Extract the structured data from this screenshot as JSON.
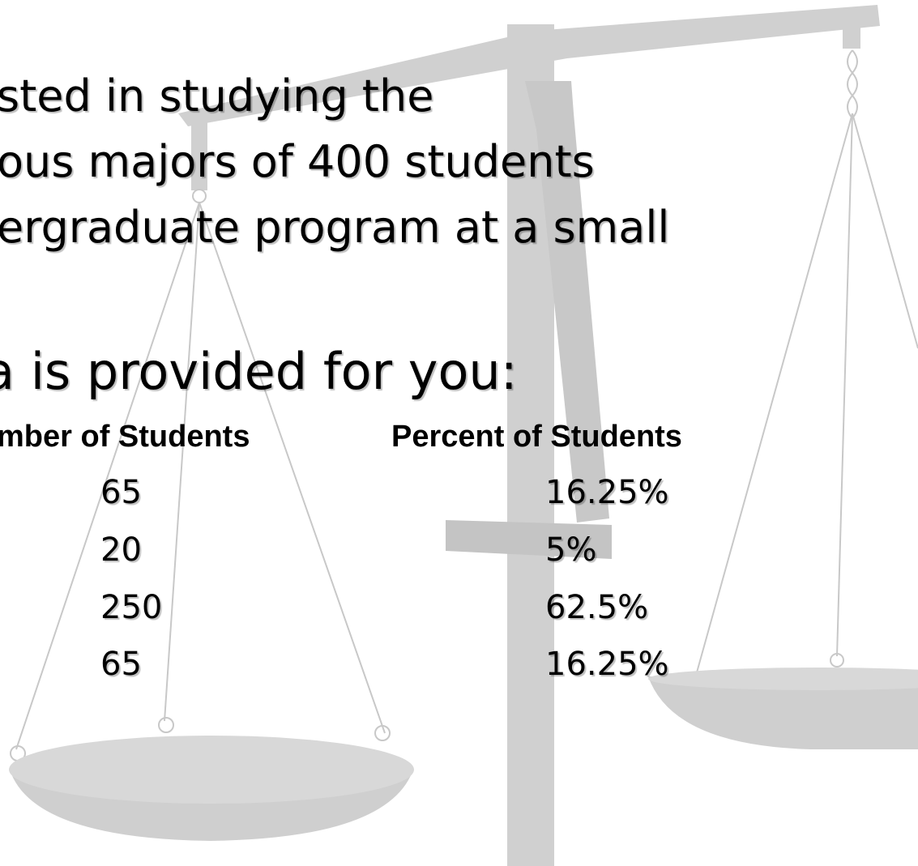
{
  "text_lines": [
    "sted in studying the",
    "ous majors of 400 students",
    "ergraduate program at a small",
    "a is provided for you:"
  ],
  "table": {
    "header": [
      "mber of Students",
      "Percent of Students"
    ],
    "rows": [
      [
        "65",
        "16.25%"
      ],
      [
        "20",
        "5%"
      ],
      [
        "250",
        "62.5%"
      ],
      [
        "65",
        "16.25%"
      ]
    ]
  }
}
